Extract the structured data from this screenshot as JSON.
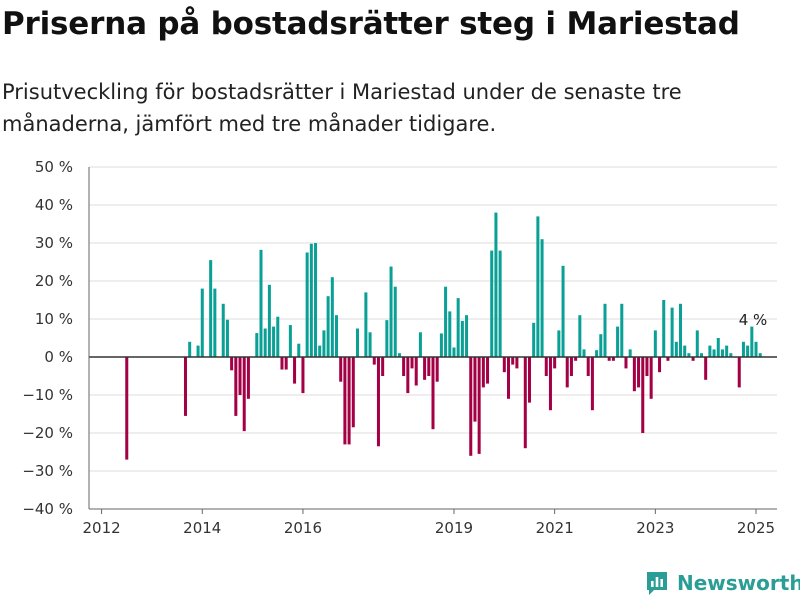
{
  "header": {
    "title": "Priserna på bostadsrätter steg i Mariestad",
    "subtitle": "Prisutveckling för bostadsrätter i Mariestad under de senaste tre månaderna, jämfört med tre månader tidigare."
  },
  "brand": {
    "name": "Newsworthy",
    "logo_icon": "bar-chart-logo-icon"
  },
  "colors": {
    "positive": "#0aa096",
    "negative": "#a30046",
    "grid": "#dddddd",
    "zero": "#333333",
    "brand": "#2a9d96"
  },
  "chart_data": {
    "type": "bar",
    "title": "Priserna på bostadsrätter steg i Mariestad",
    "ylim": [
      -40,
      50
    ],
    "yticks": [
      -40,
      -30,
      -20,
      -10,
      0,
      10,
      20,
      30,
      40,
      50
    ],
    "ytick_labels": [
      "−40 %",
      "−30 %",
      "−20 %",
      "−10 %",
      "0 %",
      "10 %",
      "20 %",
      "30 %",
      "40 %",
      "50 %"
    ],
    "xlim": [
      "2011-10",
      "2025-06"
    ],
    "xticks": [
      "2012-01",
      "2014-01",
      "2016-01",
      "2019-01",
      "2021-01",
      "2023-01",
      "2025-01"
    ],
    "xtick_labels": [
      "2012",
      "2014",
      "2016",
      "2019",
      "2021",
      "2023",
      "2025"
    ],
    "grid": true,
    "annotation": {
      "x": "2025-01",
      "text": "4 %"
    },
    "series": [
      {
        "x": [
          "2012-07",
          "2013-09",
          "2013-10",
          "2013-12",
          "2014-01",
          "2014-03",
          "2014-04",
          "2014-06",
          "2014-07",
          "2014-08",
          "2014-09",
          "2014-10",
          "2014-11",
          "2014-12",
          "2015-02",
          "2015-03",
          "2015-04",
          "2015-05",
          "2015-06",
          "2015-07",
          "2015-08",
          "2015-09",
          "2015-10",
          "2015-11",
          "2015-12",
          "2016-01",
          "2016-02",
          "2016-03",
          "2016-04",
          "2016-05",
          "2016-06",
          "2016-07",
          "2016-08",
          "2016-09",
          "2016-10",
          "2016-11",
          "2016-12",
          "2017-01",
          "2017-02",
          "2017-04",
          "2017-05",
          "2017-06",
          "2017-07",
          "2017-08",
          "2017-09",
          "2017-10",
          "2017-11",
          "2017-12",
          "2018-01",
          "2018-02",
          "2018-03",
          "2018-04",
          "2018-05",
          "2018-06",
          "2018-07",
          "2018-08",
          "2018-09",
          "2018-10",
          "2018-11",
          "2018-12",
          "2019-01",
          "2019-02",
          "2019-03",
          "2019-04",
          "2019-05",
          "2019-06",
          "2019-07",
          "2019-08",
          "2019-09",
          "2019-10",
          "2019-11",
          "2019-12",
          "2020-01",
          "2020-02",
          "2020-03",
          "2020-04",
          "2020-06",
          "2020-07",
          "2020-08",
          "2020-09",
          "2020-10",
          "2020-11",
          "2020-12",
          "2021-01",
          "2021-02",
          "2021-03",
          "2021-04",
          "2021-05",
          "2021-06",
          "2021-07",
          "2021-08",
          "2021-09",
          "2021-10",
          "2021-11",
          "2021-12",
          "2022-01",
          "2022-02",
          "2022-03",
          "2022-04",
          "2022-05",
          "2022-06",
          "2022-07",
          "2022-08",
          "2022-09",
          "2022-10",
          "2022-11",
          "2022-12",
          "2023-01",
          "2023-02",
          "2023-03",
          "2023-04",
          "2023-05",
          "2023-06",
          "2023-07",
          "2023-08",
          "2023-09",
          "2023-10",
          "2023-11",
          "2023-12",
          "2024-01",
          "2024-02",
          "2024-03",
          "2024-04",
          "2024-05",
          "2024-06",
          "2024-07",
          "2024-08",
          "2024-09",
          "2024-10",
          "2024-11",
          "2024-12",
          "2025-01",
          "2025-02"
        ],
        "values": [
          -27,
          -15.5,
          4,
          3,
          18,
          25.5,
          18,
          14,
          9.8,
          -3.5,
          -15.5,
          -10,
          -19.5,
          -11,
          6.3,
          28.2,
          7.5,
          19,
          8,
          10.6,
          -3.3,
          -3.3,
          8.4,
          -7,
          3.5,
          -9.5,
          27.5,
          29.8,
          30,
          3,
          7,
          16,
          21,
          11,
          -6.5,
          -23,
          -23,
          -18.5,
          7.5,
          17,
          6.5,
          -2,
          -23.5,
          -5,
          9.7,
          23.8,
          18.5,
          1,
          -5,
          -9.5,
          -3,
          -7.5,
          6.5,
          -6,
          -5,
          -19,
          -6.5,
          6.2,
          18.5,
          12,
          2.5,
          15.5,
          9.5,
          11,
          -26,
          -17,
          -25.5,
          -8,
          -7,
          28,
          38,
          28,
          -4,
          -11,
          -2,
          -3,
          -24,
          -12,
          9,
          37,
          31,
          -5,
          -14,
          -3,
          7,
          24,
          -8,
          -5,
          -1,
          11,
          2,
          -5,
          -14,
          1.8,
          6,
          14,
          -1,
          -1,
          8,
          14,
          -3,
          2,
          -9,
          -8,
          -20,
          -5,
          -11,
          7,
          -4,
          15,
          -1,
          13,
          4,
          14,
          3,
          1,
          -1,
          7,
          1,
          -6,
          3,
          2,
          5,
          2,
          3,
          1,
          0,
          -8,
          4,
          3,
          8,
          4,
          1
        ]
      }
    ]
  }
}
